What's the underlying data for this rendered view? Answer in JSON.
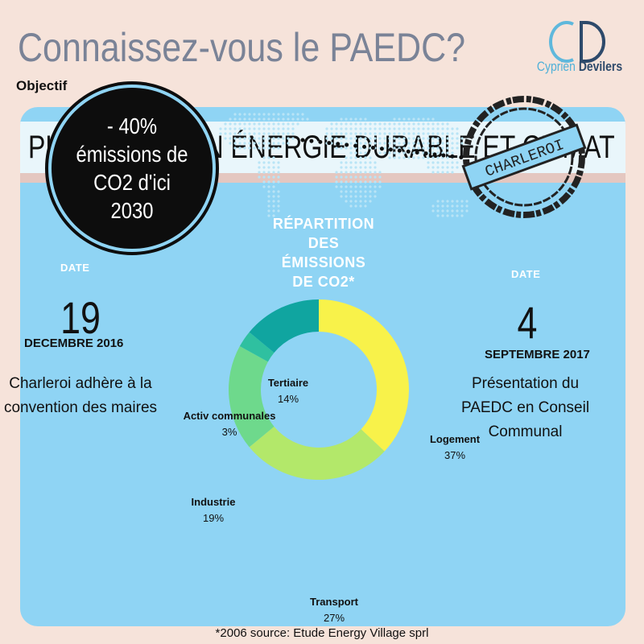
{
  "header": {
    "headline": "Connaissez-vous le PAEDC?",
    "logo_monogram": "CD",
    "logo_first": "Cyprien",
    "logo_last": "Devilers"
  },
  "panel": {
    "title": "PLAN D'ACTION ÉNERGIE DURABLE ET CLIMAT",
    "objective_label": "Objectif",
    "objective_lines": [
      "- 40%",
      "émissions de",
      "CO2 d'ici",
      "2030"
    ],
    "stamp_text": "CHARLEROI"
  },
  "left_event": {
    "date_label": "DATE",
    "day": "19",
    "month": "DECEMBRE 2016",
    "description": "Charleroi adhère à la convention des maires"
  },
  "right_event": {
    "date_label": "DATE",
    "day": "4",
    "month": "SEPTEMBRE 2017",
    "description": "Présentation du PAEDC en Conseil Communal"
  },
  "chart_title_lines": [
    "RÉPARTITION",
    "DES",
    "ÉMISSIONS",
    "DE CO2*"
  ],
  "chart_data": {
    "type": "pie",
    "donut": true,
    "categories": [
      "Logement",
      "Transport",
      "Industrie",
      "Activ communales",
      "Tertiaire"
    ],
    "values": [
      37,
      27,
      19,
      3,
      14
    ],
    "labels": [
      "37%",
      "27%",
      "19%",
      "3%",
      "14%"
    ],
    "colors": [
      "#f8f24a",
      "#b3e86a",
      "#6ed98c",
      "#2fc0a0",
      "#10a5a0"
    ]
  },
  "footnote": "*2006 source: Etude Energy Village sprl"
}
